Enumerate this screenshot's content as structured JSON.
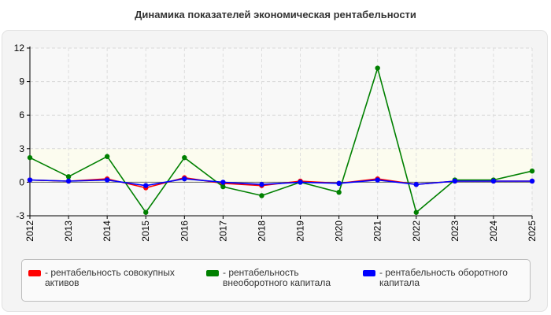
{
  "title": "Динамика показателей экономическая рентабельности",
  "chart_data": {
    "type": "line",
    "title": "Динамика показателей экономическая рентабельности",
    "xlabel": "",
    "ylabel": "",
    "categories": [
      "2012",
      "2013",
      "2014",
      "2015",
      "2016",
      "2017",
      "2018",
      "2019",
      "2020",
      "2021",
      "2022",
      "2023",
      "2024",
      "2025"
    ],
    "ylim": [
      -3,
      12
    ],
    "yticks": [
      -3,
      0,
      3,
      6,
      9,
      12
    ],
    "grid": true,
    "legend_position": "bottom",
    "series": [
      {
        "name": "- рентабельность совокупных активов",
        "color": "#ff0000",
        "values": [
          0.2,
          0.1,
          0.3,
          -0.5,
          0.4,
          -0.1,
          -0.3,
          0.1,
          -0.1,
          0.3,
          -0.2,
          0.1,
          0.1,
          0.1
        ]
      },
      {
        "name": "- рентабельность внеоборотного капитала",
        "color": "#008000",
        "values": [
          2.2,
          0.5,
          2.3,
          -2.7,
          2.2,
          -0.4,
          -1.2,
          0.0,
          -0.9,
          10.2,
          -2.7,
          0.2,
          0.2,
          1.0
        ]
      },
      {
        "name": "- рентабельность оборотного капитала",
        "color": "#0000ff",
        "values": [
          0.2,
          0.1,
          0.2,
          -0.3,
          0.3,
          0.0,
          -0.2,
          0.0,
          -0.1,
          0.2,
          -0.2,
          0.1,
          0.1,
          0.1
        ]
      }
    ]
  },
  "legend": [
    {
      "label": "- рентабельность совокупных активов",
      "color": "#ff0000"
    },
    {
      "label": "- рентабельность внеоборотного капитала",
      "color": "#008000"
    },
    {
      "label": "- рентабельность оборотного капитала",
      "color": "#0000ff"
    }
  ]
}
